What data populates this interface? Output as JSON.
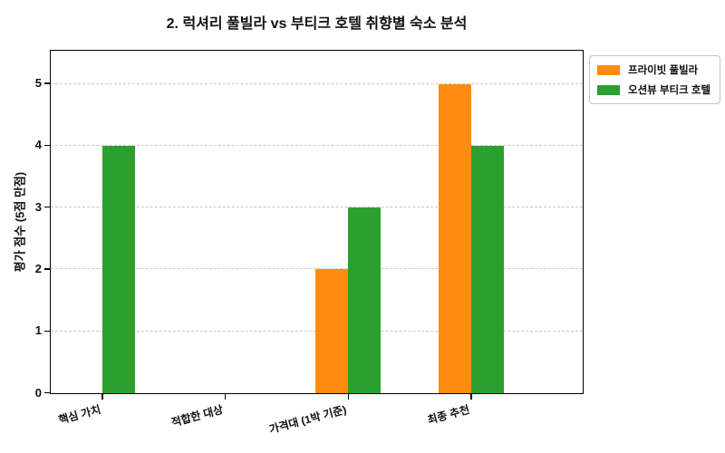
{
  "figure": {
    "background": "#ffffff",
    "axis_color": "#000000",
    "grid_color": "#c9c9c9"
  },
  "chart_data": {
    "type": "bar",
    "title": "2. 럭셔리 풀빌라 vs 부티크 호텔 취향별 숙소 분석",
    "ylabel": "평가 점수 (5점 만점)",
    "xlabel": "",
    "categories": [
      "핵심 가치",
      "적합한 대상",
      "가격대 (1박 기준)",
      "최종 추천"
    ],
    "series": [
      {
        "name": "프라이빗 풀빌라",
        "color": "#ff8c0e",
        "values": [
          0,
          0,
          2,
          5
        ]
      },
      {
        "name": "오션뷰 부티크 호텔",
        "color": "#2ca02c",
        "values": [
          4,
          0,
          3,
          4
        ]
      }
    ],
    "yticks": [
      0,
      1,
      2,
      3,
      4,
      5
    ],
    "ylim": [
      0,
      5.5
    ],
    "grid": true,
    "grid_style": "dashed",
    "legend_position": "outside-upper-right"
  }
}
